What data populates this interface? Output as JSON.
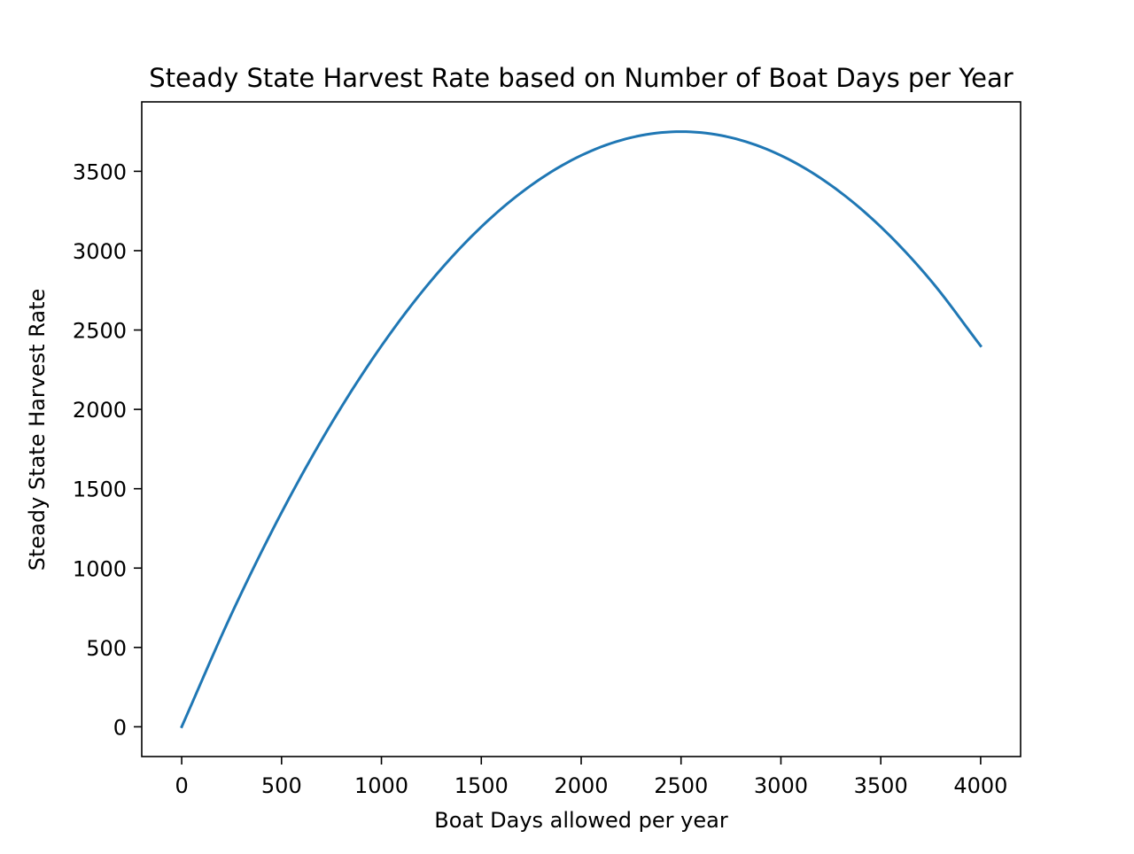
{
  "chart_data": {
    "type": "line",
    "title": "Steady State Harvest Rate based on Number of Boat Days per Year",
    "xlabel": "Boat Days allowed per year",
    "ylabel": "Steady State Harvest Rate",
    "xlim": [
      -200,
      4200
    ],
    "ylim": [
      -187.5,
      3937.5
    ],
    "xticks": [
      0,
      500,
      1000,
      1500,
      2000,
      2500,
      3000,
      3500,
      4000
    ],
    "yticks": [
      0,
      500,
      1000,
      1500,
      2000,
      2500,
      3000,
      3500
    ],
    "xtick_labels": [
      "0",
      "500",
      "1000",
      "1500",
      "2000",
      "2500",
      "3000",
      "3500",
      "4000"
    ],
    "ytick_labels": [
      "0",
      "500",
      "1000",
      "1500",
      "2000",
      "2500",
      "3000",
      "3500"
    ],
    "grid": false,
    "series": [
      {
        "color": "#1f77b4",
        "x": [
          0,
          250,
          500,
          750,
          1000,
          1250,
          1500,
          1750,
          2000,
          2250,
          2500,
          2750,
          3000,
          3250,
          3500,
          3750,
          4000
        ],
        "y": [
          0,
          712.5,
          1350,
          1912.5,
          2400,
          2812.5,
          3150,
          3412.5,
          3600,
          3712.5,
          3750,
          3712.5,
          3600,
          3412.5,
          3150,
          2812.5,
          2400
        ]
      }
    ]
  }
}
